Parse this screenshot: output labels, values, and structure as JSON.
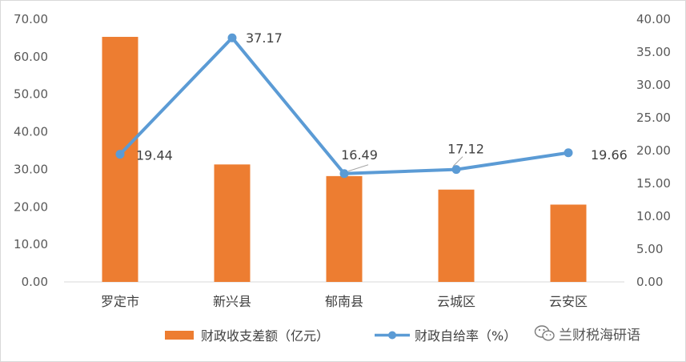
{
  "chart_data": {
    "type": "bar",
    "categories": [
      "罗定市",
      "新兴县",
      "郁南县",
      "云城区",
      "云安区"
    ],
    "series": [
      {
        "name": "财政收支差额（亿元）",
        "type": "bar",
        "axis": "left",
        "color": "#ED7D31",
        "values": [
          65.3,
          31.3,
          28.2,
          24.6,
          20.6
        ]
      },
      {
        "name": "财政自给率（%）",
        "type": "line",
        "axis": "right",
        "color": "#5B9BD5",
        "values": [
          19.44,
          37.17,
          16.49,
          17.12,
          19.66
        ],
        "labels": [
          "19.44",
          "37.17",
          "16.49",
          "17.12",
          "19.66"
        ]
      }
    ],
    "y_left": {
      "min": 0,
      "max": 70,
      "step": 10,
      "ticks": [
        "0.00",
        "10.00",
        "20.00",
        "30.00",
        "40.00",
        "50.00",
        "60.00",
        "70.00"
      ]
    },
    "y_right": {
      "min": 0,
      "max": 40,
      "step": 5,
      "ticks": [
        "0.00",
        "5.00",
        "10.00",
        "15.00",
        "20.00",
        "25.00",
        "30.00",
        "35.00",
        "40.00"
      ]
    },
    "grid": false,
    "legend_position": "bottom",
    "title": "",
    "xlabel": "",
    "ylabel": ""
  },
  "watermark": {
    "text": "兰财税海研语",
    "icon": "wechat-icon"
  }
}
